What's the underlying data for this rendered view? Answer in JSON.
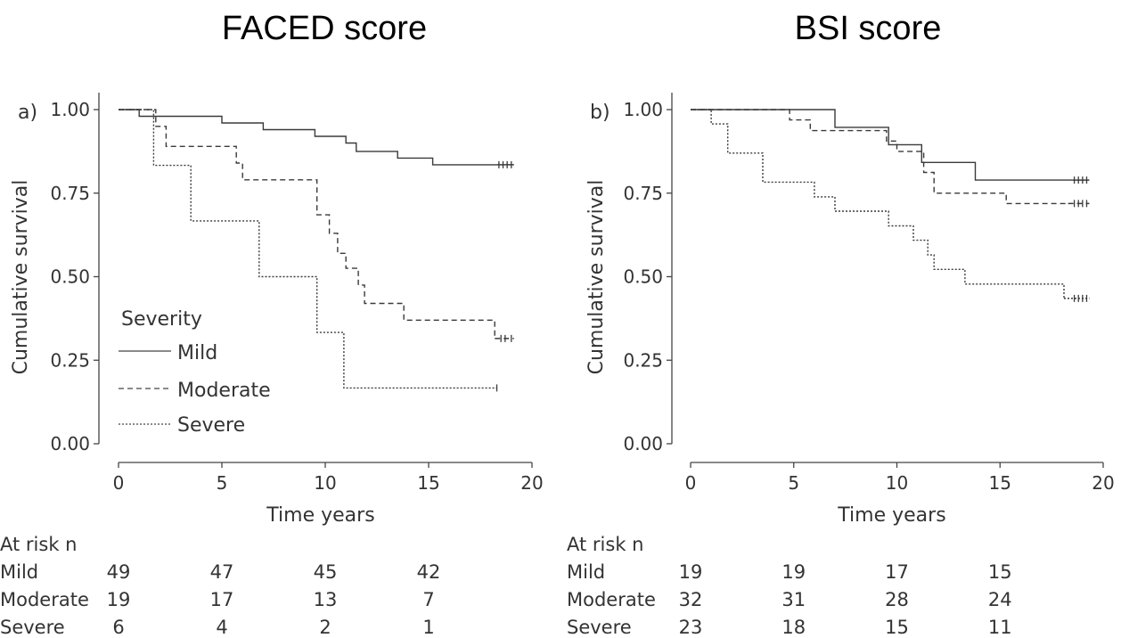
{
  "chart_data": [
    {
      "type": "line",
      "title": "FACED score",
      "panel_label": "a)",
      "xlabel": "Time years",
      "ylabel": "Cumulative survival",
      "xlim": [
        0,
        20
      ],
      "ylim": [
        0,
        1
      ],
      "xticks": [
        "0",
        "5",
        "10",
        "15",
        "20"
      ],
      "yticks": [
        "0.00",
        "0.25",
        "0.50",
        "0.75",
        "1.00"
      ],
      "legend": {
        "title": "Severity",
        "position": "bottom-left"
      },
      "series": [
        {
          "name": "Mild",
          "style": "solid",
          "x": [
            0,
            1.0,
            5.0,
            7.0,
            9.5,
            11.0,
            11.5,
            13.5,
            15.2,
            18.3
          ],
          "y": [
            1.0,
            0.98,
            0.96,
            0.94,
            0.92,
            0.9,
            0.875,
            0.855,
            0.835,
            0.835
          ],
          "censor_x": [
            18.4,
            18.6,
            18.8,
            19.0
          ]
        },
        {
          "name": "Moderate",
          "style": "dashed",
          "x": [
            0,
            1.8,
            2.3,
            5.7,
            6.0,
            9.6,
            10.2,
            10.6,
            11.0,
            11.6,
            11.9,
            12.6,
            13.8,
            18.2
          ],
          "y": [
            1.0,
            0.95,
            0.89,
            0.84,
            0.79,
            0.685,
            0.63,
            0.57,
            0.525,
            0.475,
            0.42,
            0.42,
            0.37,
            0.315
          ],
          "censor_x": [
            18.5,
            18.7,
            19.0
          ]
        },
        {
          "name": "Severe",
          "style": "dotted",
          "x": [
            0,
            1.7,
            3.5,
            6.8,
            9.6,
            10.9,
            18.3
          ],
          "y": [
            1.0,
            0.833,
            0.667,
            0.5,
            0.333,
            0.167,
            0.167
          ],
          "censor_x": [
            18.3
          ]
        }
      ],
      "at_risk": {
        "title": "At risk n",
        "times": [
          0,
          5,
          10,
          15
        ],
        "rows": [
          {
            "label": "Mild",
            "values": [
              "49",
              "47",
              "45",
              "42"
            ]
          },
          {
            "label": "Moderate",
            "values": [
              "19",
              "17",
              "13",
              "7"
            ]
          },
          {
            "label": "Severe",
            "values": [
              "6",
              "4",
              "2",
              "1"
            ]
          }
        ]
      }
    },
    {
      "type": "line",
      "title": "BSI score",
      "panel_label": "b)",
      "xlabel": "Time years",
      "ylabel": "Cumulative survival",
      "xlim": [
        0,
        20
      ],
      "ylim": [
        0,
        1
      ],
      "xticks": [
        "0",
        "5",
        "10",
        "15",
        "20"
      ],
      "yticks": [
        "0.00",
        "0.25",
        "0.50",
        "0.75",
        "1.00"
      ],
      "series": [
        {
          "name": "Mild",
          "style": "solid",
          "x": [
            0,
            7.0,
            9.6,
            11.2,
            13.8,
            18.5
          ],
          "y": [
            1.0,
            0.947,
            0.895,
            0.842,
            0.789,
            0.789
          ],
          "censor_x": [
            18.6,
            18.8,
            19.0,
            19.2
          ]
        },
        {
          "name": "Moderate",
          "style": "dashed",
          "x": [
            0,
            4.8,
            5.8,
            9.5,
            10.0,
            11.3,
            11.8,
            15.3,
            18.3
          ],
          "y": [
            1.0,
            0.969,
            0.937,
            0.906,
            0.875,
            0.812,
            0.75,
            0.719,
            0.719
          ],
          "censor_x": [
            18.6,
            18.8,
            19.0,
            19.2
          ]
        },
        {
          "name": "Severe",
          "style": "dotted",
          "x": [
            0,
            1.0,
            1.8,
            3.5,
            6.0,
            7.0,
            9.6,
            10.8,
            11.5,
            11.8,
            12.2,
            13.3,
            18.1
          ],
          "y": [
            1.0,
            0.957,
            0.87,
            0.783,
            0.739,
            0.696,
            0.652,
            0.609,
            0.565,
            0.522,
            0.522,
            0.478,
            0.435
          ],
          "censor_x": [
            18.6,
            18.8,
            19.0,
            19.2
          ]
        }
      ],
      "at_risk": {
        "title": "At risk n",
        "times": [
          0,
          5,
          10,
          15
        ],
        "rows": [
          {
            "label": "Mild",
            "values": [
              "19",
              "19",
              "17",
              "15"
            ]
          },
          {
            "label": "Moderate",
            "values": [
              "32",
              "31",
              "28",
              "24"
            ]
          },
          {
            "label": "Severe",
            "values": [
              "23",
              "18",
              "15",
              "11"
            ]
          }
        ]
      }
    }
  ]
}
